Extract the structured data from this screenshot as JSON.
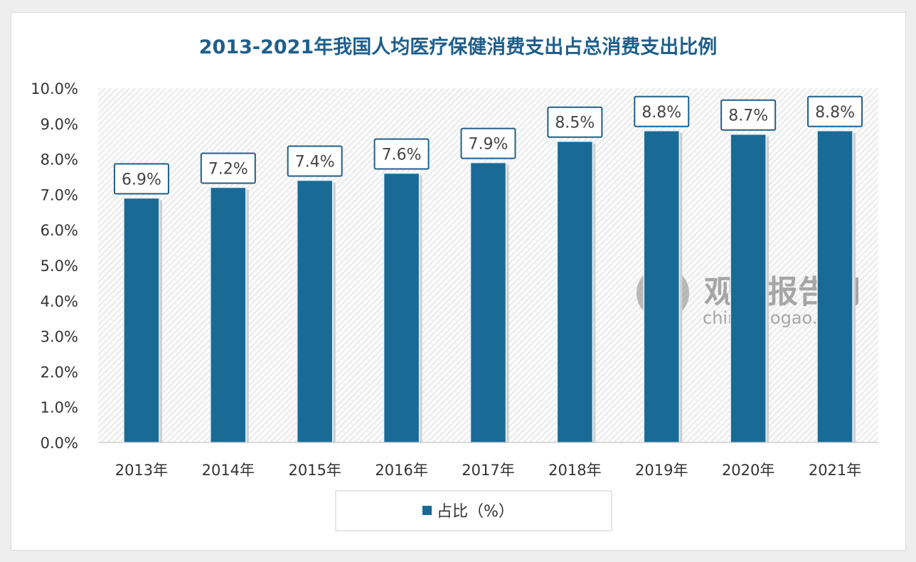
{
  "chart_data": {
    "type": "bar",
    "title": "2013-2021年我国人均医疗保健消费支出占总消费支出比例",
    "categories": [
      "2013年",
      "2014年",
      "2015年",
      "2016年",
      "2017年",
      "2018年",
      "2019年",
      "2020年",
      "2021年"
    ],
    "series": [
      {
        "name": "占比（%）",
        "values": [
          6.9,
          7.2,
          7.4,
          7.6,
          7.9,
          8.5,
          8.8,
          8.7,
          8.8
        ]
      }
    ],
    "data_labels": [
      "6.9%",
      "7.2%",
      "7.4%",
      "7.6%",
      "7.9%",
      "8.5%",
      "8.8%",
      "8.7%",
      "8.8%"
    ],
    "y_ticks": [
      "0.0%",
      "1.0%",
      "2.0%",
      "3.0%",
      "4.0%",
      "5.0%",
      "6.0%",
      "7.0%",
      "8.0%",
      "9.0%",
      "10.0%"
    ],
    "ylim": [
      0,
      10
    ],
    "xlabel": "",
    "ylabel": "",
    "grid": false,
    "legend": "bottom",
    "colors": {
      "bar": "#1a6a96",
      "title": "#1f5f8b",
      "label_border": "#1f5f8b"
    }
  },
  "watermark": {
    "cn": "观研报告网",
    "en": "chinabaogao.com"
  }
}
